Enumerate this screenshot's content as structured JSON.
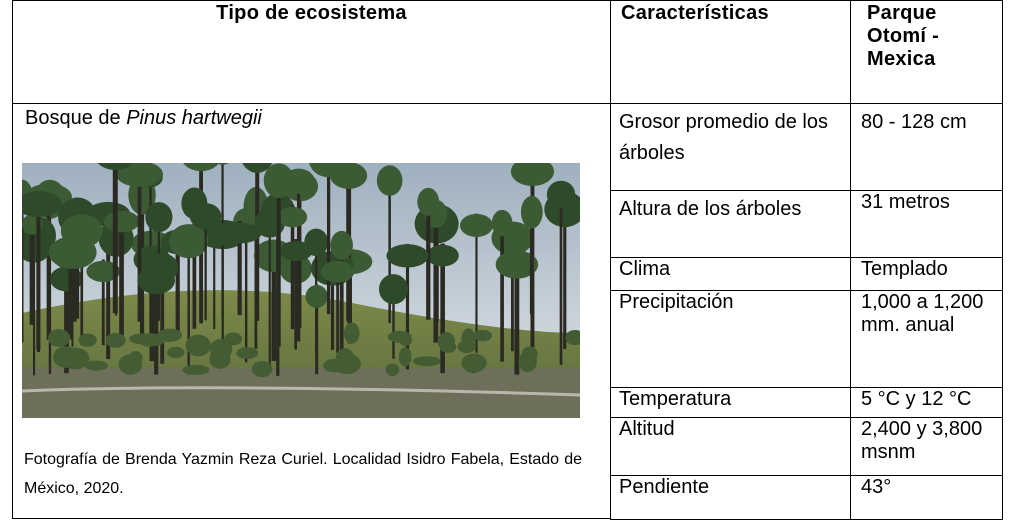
{
  "table": {
    "headers": [
      "Tipo de ecosistema",
      "Características",
      "Parque Otomí - Mexica"
    ],
    "ecosystem": {
      "name": "Bosque de",
      "species": "Pinus hartwegii"
    },
    "photo_caption": "Fotografía de Brenda Yazmin Reza Curiel. Localidad Isidro Fabela, Estado de México, 2020.",
    "rows": [
      [
        "Grosor promedio de los árboles",
        "80 - 128 cm"
      ],
      [
        "Altura de los árboles",
        "31 metros"
      ],
      [
        "Clima",
        "Templado"
      ],
      [
        "Precipitación",
        "1,000 a 1,200 mm. anual"
      ],
      [
        "Temperatura",
        "5 °C y 12 °C"
      ],
      [
        "Altitud",
        "2,400 y 3,800 msnm"
      ],
      [
        "Pendiente",
        "43°"
      ]
    ]
  }
}
